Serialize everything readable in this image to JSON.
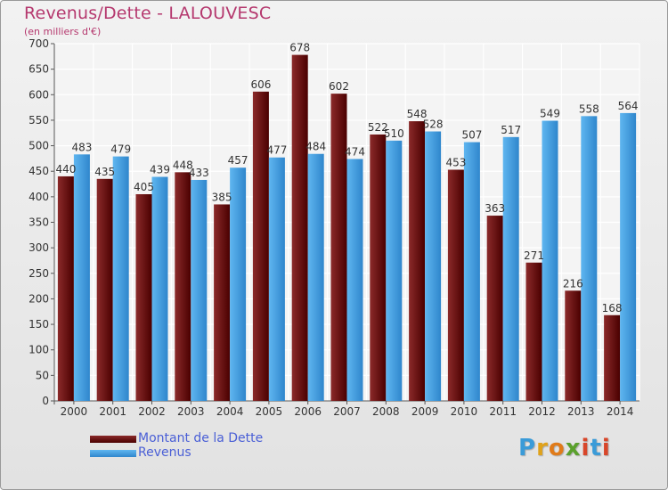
{
  "title": "Revenus/Dette - LALOUVESC",
  "subtitle": "(en milliers d'€)",
  "legend": {
    "dette": "Montant de la Dette",
    "revenus": "Revenus"
  },
  "logo": "Proxiti",
  "colors": {
    "dette_top": "#8b2a2a",
    "dette_bottom": "#4a0000",
    "revenus_top": "#5fb6f0",
    "revenus_bottom": "#2f86cc",
    "title": "#b5386e",
    "legend_text": "#4a5fd6"
  },
  "chart_data": {
    "type": "bar",
    "title": "Revenus/Dette - LALOUVESC",
    "subtitle": "(en milliers d'€)",
    "categories": [
      "2000",
      "2001",
      "2002",
      "2003",
      "2004",
      "2005",
      "2006",
      "2007",
      "2008",
      "2009",
      "2010",
      "2011",
      "2012",
      "2013",
      "2014"
    ],
    "series": [
      {
        "name": "Montant de la Dette",
        "values": [
          440,
          435,
          405,
          448,
          385,
          606,
          678,
          602,
          522,
          548,
          453,
          363,
          271,
          216,
          168
        ]
      },
      {
        "name": "Revenus",
        "values": [
          483,
          479,
          439,
          433,
          457,
          477,
          484,
          474,
          510,
          528,
          507,
          517,
          549,
          558,
          564
        ]
      }
    ],
    "ylim": [
      0,
      700
    ],
    "yticks": [
      0,
      50,
      100,
      150,
      200,
      250,
      300,
      350,
      400,
      450,
      500,
      550,
      600,
      650,
      700
    ],
    "grid": true,
    "legend_position": "bottom-left"
  }
}
